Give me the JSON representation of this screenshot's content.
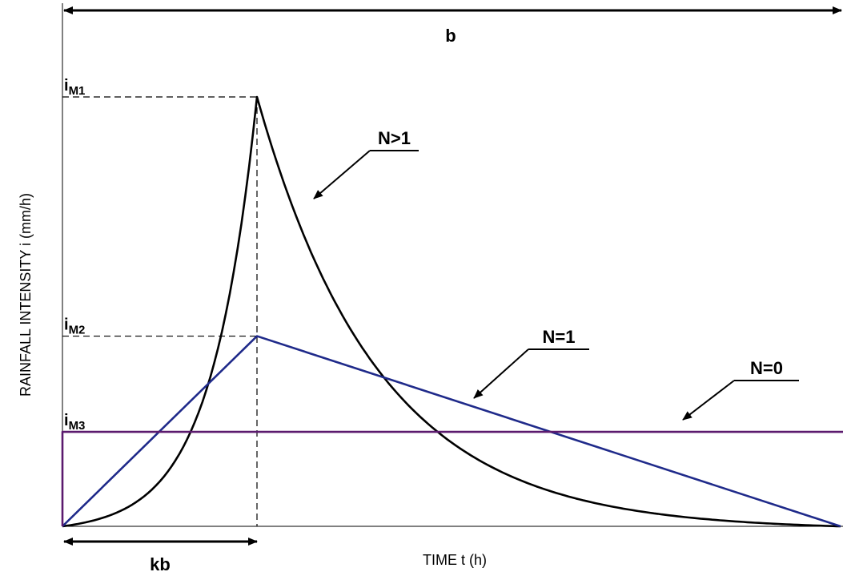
{
  "chart_data": {
    "type": "line",
    "title": "",
    "xlabel": "TIME t (h)",
    "ylabel": "RAINFALL INTENSITY i (mm/h)",
    "dimension_labels": {
      "total_duration": "b",
      "peak_time": "kb"
    },
    "peak_fraction_k": 0.25,
    "intensity_levels": [
      {
        "label_main": "i",
        "label_sub": "M1",
        "value": 1.0
      },
      {
        "label_main": "i",
        "label_sub": "M2",
        "value": 0.443
      },
      {
        "label_main": "i",
        "label_sub": "M3",
        "value": 0.22
      }
    ],
    "series": [
      {
        "name": "N>1",
        "color": "#000000",
        "shape": "exponential",
        "peak": 1.0
      },
      {
        "name": "N=1",
        "color": "#1f2a8a",
        "shape": "triangular",
        "peak": 0.443
      },
      {
        "name": "N=0",
        "color": "#5b1a6e",
        "shape": "rectangular",
        "peak": 0.22
      }
    ],
    "xlim": [
      0,
      1
    ],
    "ylim": [
      0,
      1.1
    ],
    "grid": false
  }
}
